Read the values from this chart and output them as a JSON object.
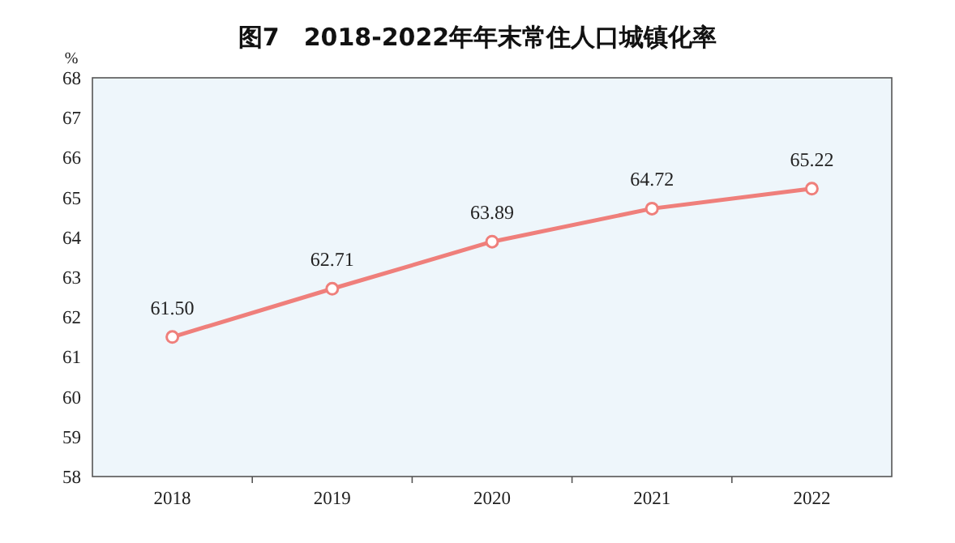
{
  "chart_data": {
    "type": "line",
    "title": "图7　2018-2022年年末常住人口城镇化率",
    "ylabel": "%",
    "categories": [
      "2018",
      "2019",
      "2020",
      "2021",
      "2022"
    ],
    "values": [
      61.5,
      62.71,
      63.89,
      64.72,
      65.22
    ],
    "value_labels": [
      "61.50",
      "62.71",
      "63.89",
      "64.72",
      "65.22"
    ],
    "color": "#ef7f7b",
    "marker": "circle",
    "line_style": "solid",
    "ylim": [
      58,
      68
    ],
    "yticks": [
      58,
      59,
      60,
      61,
      62,
      63,
      64,
      65,
      66,
      67,
      68
    ]
  }
}
